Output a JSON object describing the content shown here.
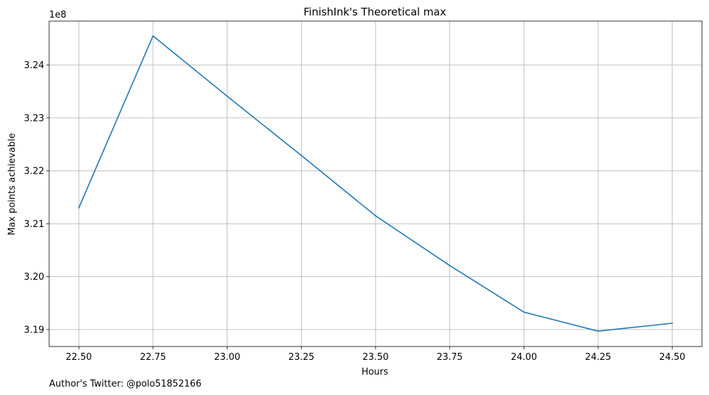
{
  "chart_data": {
    "type": "line",
    "title": "FinishInk's Theoretical max",
    "xlabel": "Hours",
    "ylabel": "Max points achievable",
    "y_offset_label": "1e8",
    "footer": "Author's Twitter: @polo51852166",
    "grid": true,
    "xlim": [
      22.4,
      24.6
    ],
    "ylim": [
      3.1868,
      3.2483
    ],
    "x_ticks": [
      22.5,
      22.75,
      23.0,
      23.25,
      23.5,
      23.75,
      24.0,
      24.25,
      24.5
    ],
    "x_tick_labels": [
      "22.50",
      "22.75",
      "23.00",
      "23.25",
      "23.50",
      "23.75",
      "24.00",
      "24.25",
      "24.50"
    ],
    "y_ticks": [
      3.19,
      3.2,
      3.21,
      3.22,
      3.23,
      3.24
    ],
    "y_tick_labels": [
      "3.19",
      "3.20",
      "3.21",
      "3.22",
      "3.23",
      "3.24"
    ],
    "series": [
      {
        "color": "#1f77b4",
        "x": [
          22.5,
          22.75,
          23.0,
          23.25,
          23.5,
          23.75,
          24.0,
          24.25,
          24.5
        ],
        "y": [
          3.213,
          3.2455,
          3.2341,
          3.2229,
          3.2115,
          3.2021,
          3.1933,
          3.1897,
          3.1912
        ]
      }
    ]
  }
}
